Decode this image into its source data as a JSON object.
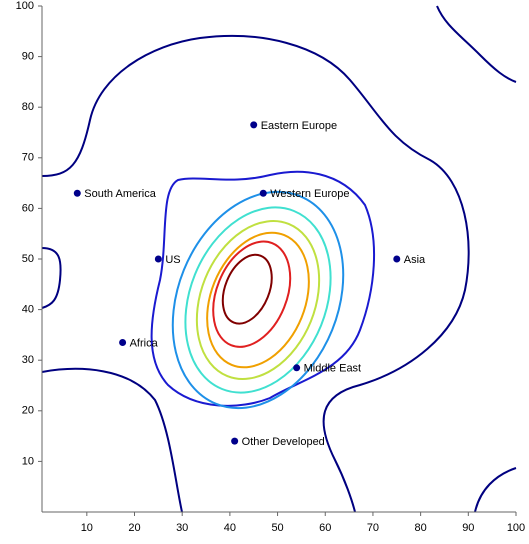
{
  "chart_data": {
    "type": "scatter",
    "series": [
      {
        "color": "#00008b",
        "x": [
          45,
          8,
          47,
          25,
          75,
          17.5,
          54,
          41
        ],
        "values": [
          76.5,
          63,
          63,
          50,
          50,
          33.5,
          28.5,
          14
        ],
        "labels": [
          "Eastern Europe",
          "South America",
          "Western Europe",
          "US",
          "Asia",
          "Africa",
          "Middle East",
          "Other Developed"
        ]
      }
    ],
    "xlim": [
      0.6,
      100
    ],
    "ylim": [
      0,
      100
    ],
    "xticks": [
      10,
      20,
      30,
      40,
      50,
      60,
      70,
      80,
      90,
      100
    ],
    "yticks": [
      10,
      20,
      30,
      40,
      50,
      60,
      70,
      80,
      90,
      100
    ]
  }
}
